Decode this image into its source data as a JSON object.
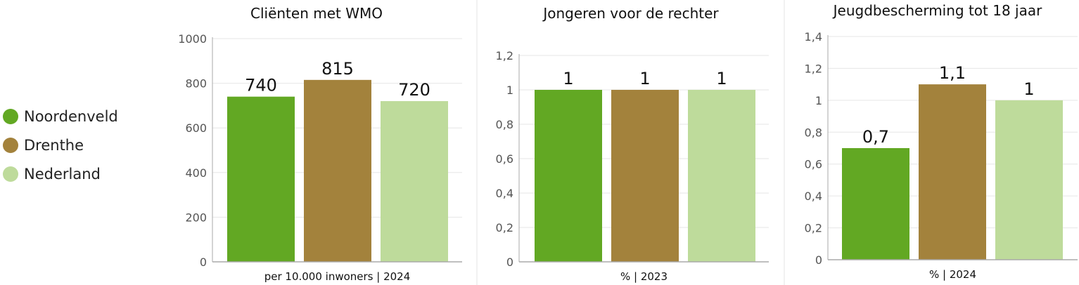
{
  "legend": [
    {
      "name": "Noordenveld",
      "color": "#62a823"
    },
    {
      "name": "Drenthe",
      "color": "#a3823c"
    },
    {
      "name": "Nederland",
      "color": "#bedb9b"
    }
  ],
  "chart_data": [
    {
      "type": "bar",
      "title": "Cliënten met WMO",
      "xlabel": "per 10.000 inwoners | 2024",
      "categories": [
        "Noordenveld",
        "Drenthe",
        "Nederland"
      ],
      "values": [
        740,
        815,
        720
      ],
      "data_labels": [
        "740",
        "815",
        "720"
      ],
      "ylim": [
        0,
        1000
      ],
      "yticks": [
        0,
        200,
        400,
        600,
        800,
        1000
      ],
      "ytick_labels": [
        "0",
        "200",
        "400",
        "600",
        "800",
        "1000"
      ],
      "grid": true
    },
    {
      "type": "bar",
      "title": "Jongeren voor de rechter",
      "xlabel": "% | 2023",
      "categories": [
        "Noordenveld",
        "Drenthe",
        "Nederland"
      ],
      "values": [
        1,
        1,
        1
      ],
      "data_labels": [
        "1",
        "1",
        "1"
      ],
      "ylim": [
        0,
        1.2
      ],
      "yticks": [
        0,
        0.2,
        0.4,
        0.6,
        0.8,
        1,
        1.2
      ],
      "ytick_labels": [
        "0",
        "0,2",
        "0,4",
        "0,6",
        "0,8",
        "1",
        "1,2"
      ],
      "grid": true
    },
    {
      "type": "bar",
      "title": "Jeugdbescherming tot 18 jaar",
      "xlabel": "% | 2024",
      "categories": [
        "Noordenveld",
        "Drenthe",
        "Nederland"
      ],
      "values": [
        0.7,
        1.1,
        1
      ],
      "data_labels": [
        "0,7",
        "1,1",
        "1"
      ],
      "ylim": [
        0,
        1.4
      ],
      "yticks": [
        0,
        0.2,
        0.4,
        0.6,
        0.8,
        1,
        1.2,
        1.4
      ],
      "ytick_labels": [
        "0",
        "0,2",
        "0,4",
        "0,6",
        "0,8",
        "1",
        "1,2",
        "1,4"
      ],
      "grid": true
    }
  ]
}
